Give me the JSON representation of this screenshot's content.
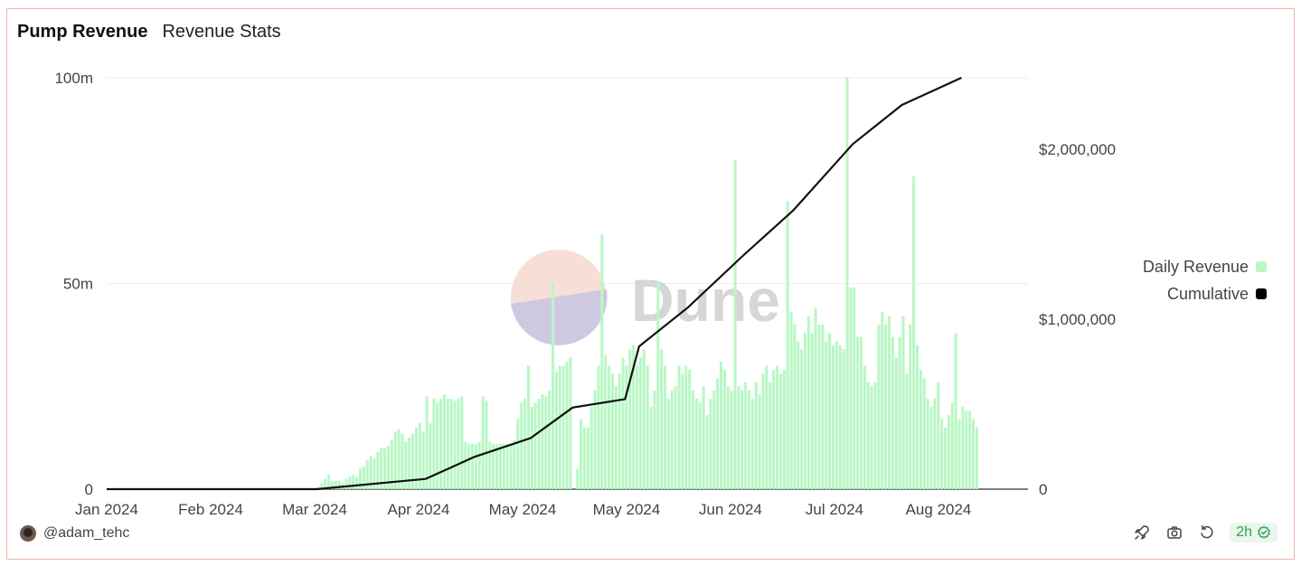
{
  "header": {
    "title": "Pump Revenue",
    "subtitle": "Revenue Stats"
  },
  "watermark": {
    "text": "Dune"
  },
  "legend": [
    {
      "label": "Daily Revenue",
      "color": "#b9f7c5"
    },
    {
      "label": "Cumulative",
      "color": "#000000"
    }
  ],
  "footer": {
    "author": "@adam_tehc",
    "refresh": "2h"
  },
  "icons": [
    "rocket-icon",
    "camera-icon",
    "refresh-icon",
    "check-circle-icon"
  ],
  "chart_data": {
    "type": "bar",
    "x_tick_labels": [
      "Jan 2024",
      "Feb 2024",
      "Mar 2024",
      "Apr 2024",
      "May 2024",
      "May 2024",
      "Jun 2024",
      "Jul 2024",
      "Aug 2024"
    ],
    "y_left": {
      "ticks": [
        "0",
        "50m",
        "100m"
      ],
      "range": [
        0,
        100
      ]
    },
    "y_right": {
      "ticks": [
        "0",
        "$1,000,000",
        "$2,000,000"
      ],
      "range": [
        0,
        2420000
      ]
    },
    "grid": true,
    "legend_position": "right",
    "series": [
      {
        "name": "Daily Revenue",
        "axis": "left",
        "color": "#b9f7c5",
        "values": [
          0,
          0,
          0,
          0,
          0,
          0,
          0,
          0,
          0,
          0,
          0,
          0,
          0,
          0,
          0,
          0,
          0,
          0,
          0,
          0,
          0,
          0,
          0,
          0,
          0,
          0,
          0,
          0,
          0,
          0,
          0,
          0,
          0,
          0,
          0,
          0,
          0,
          0,
          0,
          0,
          0,
          0,
          0,
          0,
          0,
          0,
          0,
          0,
          0,
          0,
          0,
          0,
          0,
          0,
          0,
          0,
          0,
          0,
          0,
          0,
          0.5,
          1.5,
          2.5,
          3.5,
          2,
          2,
          2,
          1.5,
          2.5,
          3,
          3.5,
          3,
          5,
          5.5,
          7,
          8,
          7.5,
          9,
          10,
          10,
          10.5,
          12,
          14,
          14.5,
          13.5,
          11.5,
          12.5,
          13.5,
          15,
          16,
          14,
          22.5,
          16,
          22,
          21,
          22,
          23,
          22,
          22,
          21.5,
          22,
          22.5,
          11.5,
          11,
          11,
          11,
          11.5,
          22.5,
          21.5,
          11.5,
          11,
          11,
          11,
          11,
          11,
          11,
          12,
          17,
          21,
          22,
          30,
          20,
          21,
          22,
          23,
          22.5,
          24,
          50,
          28.5,
          30,
          30,
          31,
          32,
          0,
          5,
          17,
          15,
          15,
          20,
          24,
          30,
          62,
          32.5,
          30,
          28,
          25,
          28,
          32,
          30,
          34,
          35,
          30,
          32,
          34,
          30,
          20,
          24,
          50,
          34,
          30,
          22,
          24,
          25,
          30,
          28,
          30,
          29,
          24,
          22,
          21,
          25,
          18,
          22,
          24,
          27,
          31,
          29,
          25,
          24,
          80,
          25,
          24,
          26,
          24,
          22,
          26,
          23,
          28,
          30,
          26,
          29,
          30,
          28,
          29,
          70,
          43,
          40,
          36,
          34,
          38,
          42,
          38,
          44,
          40,
          40,
          36,
          38,
          35,
          36,
          35,
          34,
          100,
          49,
          49,
          37,
          37,
          30,
          26,
          25,
          26,
          40,
          43,
          40,
          42,
          37,
          32,
          37,
          42,
          28,
          40,
          76,
          35,
          29,
          27,
          22,
          20,
          22,
          26,
          17,
          15,
          18,
          21,
          38,
          17,
          20,
          19,
          19,
          17,
          15
        ],
        "note": "one bar per day, approx Jan 1 – Sep 18 2024, values in millions"
      },
      {
        "name": "Cumulative",
        "axis": "right",
        "color": "#000000",
        "points": [
          [
            "Jan 2024",
            0
          ],
          [
            "Mar 2024",
            0
          ],
          [
            "Apr 2024",
            60000
          ],
          [
            "Apr 15 2024",
            190000
          ],
          [
            "May 2024",
            300000
          ],
          [
            "May 13 2024",
            480000
          ],
          [
            "May 28 2024",
            530000
          ],
          [
            "Jun 2024",
            840000
          ],
          [
            "Jun 15 2024",
            1070000
          ],
          [
            "Jul 2024",
            1380000
          ],
          [
            "Jul 15 2024",
            1640000
          ],
          [
            "Aug 2024",
            2030000
          ],
          [
            "Aug 15 2024",
            2260000
          ],
          [
            "Sep 2024",
            2420000
          ]
        ],
        "note": "cumulative revenue in USD"
      }
    ]
  }
}
